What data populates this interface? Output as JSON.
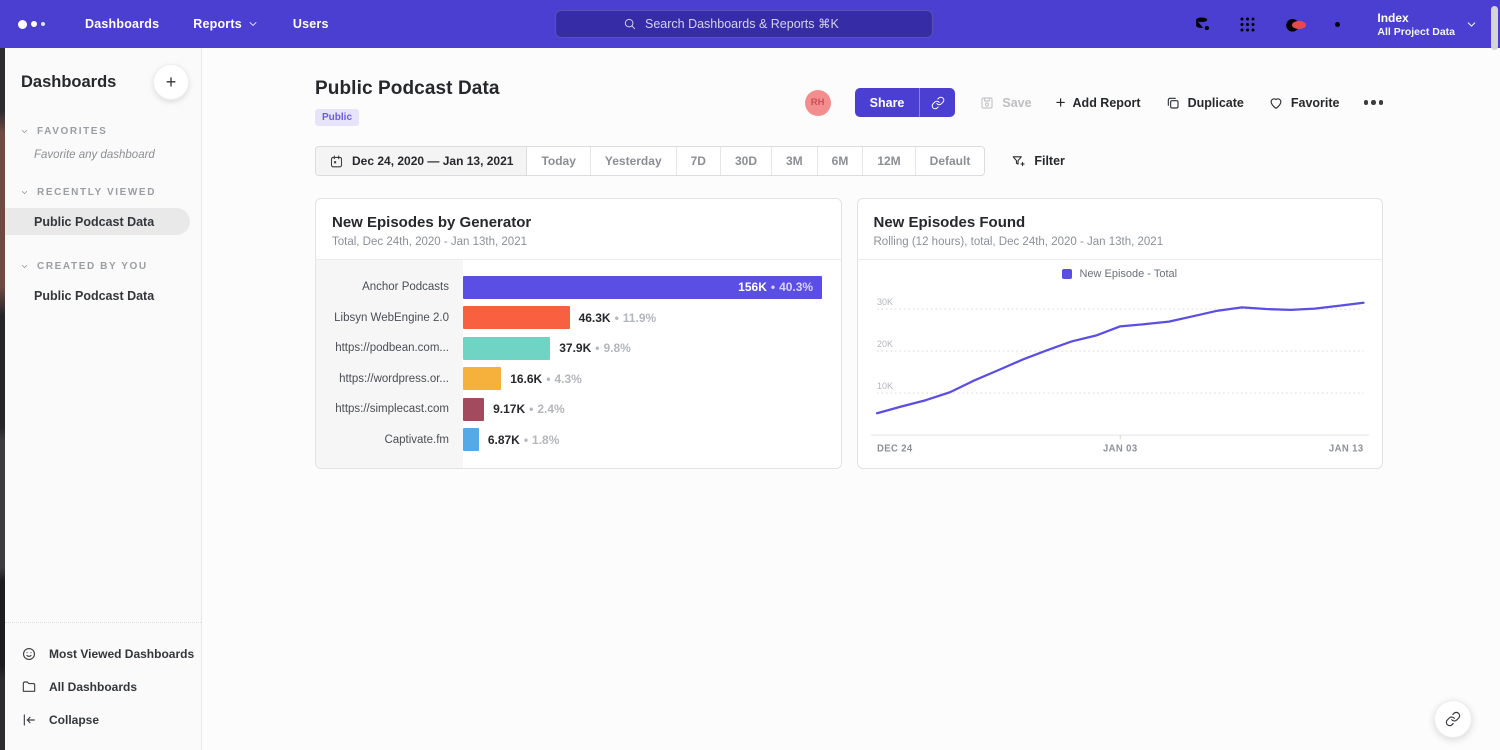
{
  "topbar": {
    "nav": [
      {
        "label": "Dashboards",
        "has_chevron": false
      },
      {
        "label": "Reports",
        "has_chevron": true
      },
      {
        "label": "Users",
        "has_chevron": false
      }
    ],
    "search_placeholder": "Search Dashboards & Reports ⌘K",
    "icons": [
      "data-sources-icon",
      "apps-grid-icon",
      "help-icon",
      "settings-icon"
    ],
    "help_has_badge": true,
    "project": {
      "name": "Index",
      "subtitle": "All Project Data"
    }
  },
  "sidebar": {
    "title": "Dashboards",
    "add_button": "+",
    "sections": [
      {
        "label": "FAVORITES",
        "empty_text": "Favorite any dashboard",
        "items": []
      },
      {
        "label": "RECENTLY VIEWED",
        "items": [
          {
            "label": "Public Podcast Data",
            "selected": true
          }
        ]
      },
      {
        "label": "CREATED BY YOU",
        "items": [
          {
            "label": "Public Podcast Data",
            "selected": false
          }
        ]
      }
    ],
    "footer": [
      {
        "label": "Most Viewed Dashboards",
        "icon": "smiley-icon"
      },
      {
        "label": "All Dashboards",
        "icon": "folder-icon"
      },
      {
        "label": "Collapse",
        "icon": "collapse-icon"
      }
    ]
  },
  "header": {
    "title": "Public Podcast Data",
    "badge": "Public",
    "avatar_initials": "RH",
    "share_label": "Share",
    "save_label": "Save",
    "add_report_label": "Add Report",
    "duplicate_label": "Duplicate",
    "favorite_label": "Favorite"
  },
  "datebar": {
    "range": "Dec 24, 2020 — Jan 13, 2021",
    "presets": [
      "Today",
      "Yesterday",
      "7D",
      "30D",
      "3M",
      "6M",
      "12M",
      "Default"
    ],
    "filter_label": "Filter"
  },
  "colors": {
    "topbar": "#4A3FD0",
    "accent_purple": "#5B4EE4",
    "badge_bg": "#E7E3FB",
    "badge_text": "#6A5BE0",
    "avatar_bg": "#F48E8E",
    "notification_red": "#E5484D"
  },
  "chart_data": [
    {
      "type": "bar",
      "orientation": "horizontal",
      "title": "New Episodes by Generator",
      "subtitle": "Total, Dec 24th, 2020 - Jan 13th, 2021",
      "categories": [
        "Anchor Podcasts",
        "Libsyn WebEngine 2.0",
        "https://podbean.com...",
        "https://wordpress.or...",
        "https://simplecast.com",
        "Captivate.fm"
      ],
      "values": [
        156000,
        46300,
        37900,
        16600,
        9170,
        6870
      ],
      "value_labels": [
        "156K",
        "46.3K",
        "37.9K",
        "16.6K",
        "9.17K",
        "6.87K"
      ],
      "pct_labels": [
        "40.3%",
        "11.9%",
        "9.8%",
        "4.3%",
        "2.4%",
        "1.8%"
      ],
      "bar_colors": [
        "#5B4EE4",
        "#F9603F",
        "#6FD4C4",
        "#F6B13C",
        "#A44A5F",
        "#55A9E9"
      ],
      "xlim": [
        0,
        164000
      ],
      "grid": false
    },
    {
      "type": "line",
      "title": "New Episodes Found",
      "subtitle": "Rolling (12 hours), total, Dec 24th, 2020 - Jan 13th, 2021",
      "legend": [
        {
          "label": "New Episode - Total",
          "color": "#5B4EE4"
        }
      ],
      "line_color": "#5B4EE4",
      "x": [
        "Dec 24",
        "Dec 25",
        "Dec 26",
        "Dec 27",
        "Dec 28",
        "Dec 29",
        "Dec 30",
        "Dec 31",
        "Jan 01",
        "Jan 02",
        "Jan 03",
        "Jan 04",
        "Jan 05",
        "Jan 06",
        "Jan 07",
        "Jan 08",
        "Jan 09",
        "Jan 10",
        "Jan 11",
        "Jan 12",
        "Jan 13"
      ],
      "values": [
        5200,
        6800,
        8300,
        10200,
        13000,
        15500,
        18000,
        20200,
        22300,
        23700,
        25900,
        26400,
        27000,
        28300,
        29600,
        30400,
        30000,
        29800,
        30100,
        30800,
        31500
      ],
      "y_ticks": [
        {
          "label": "10K",
          "value": 10000
        },
        {
          "label": "20K",
          "value": 20000
        },
        {
          "label": "30K",
          "value": 30000
        }
      ],
      "x_ticks": [
        "DEC 24",
        "JAN 03",
        "JAN 13"
      ],
      "ylim": [
        0,
        33500
      ],
      "grid": "dotted-horizontal",
      "legend_position": "top-center"
    }
  ],
  "floating": {
    "link_button": "link-icon"
  }
}
